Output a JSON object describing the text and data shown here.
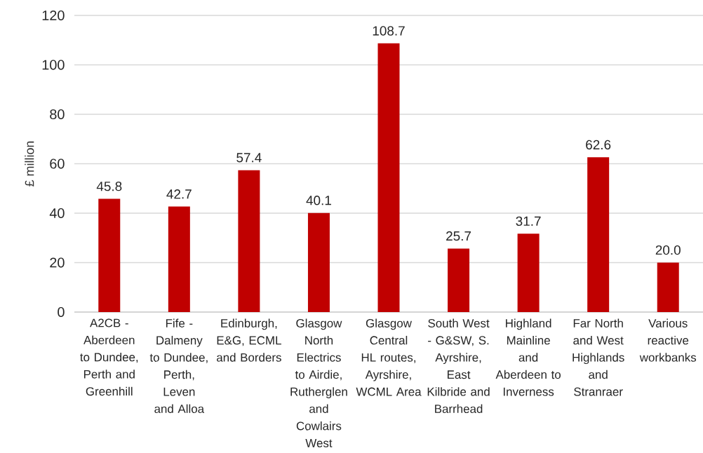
{
  "chart_data": {
    "type": "bar",
    "ylabel": "£ million",
    "categories": [
      "A2CB - Aberdeen to Dundee, Perth and Greenhill",
      "Fife - Dalmeny to Dundee, Perth, Leven and Alloa",
      "Edinburgh, E&G, ECML and Borders",
      "Glasgow North Electrics to Airdie, Rutherglen and Cowlairs West",
      "Glasgow Central HL routes, Ayrshire, WCML Area",
      "South West - G&SW, S. Ayrshire, East Kilbride and Barrhead",
      "Highland Mainline and Aberdeen to Inverness",
      "Far North and West Highlands and Stranraer",
      "Various reactive workbanks"
    ],
    "values": [
      45.8,
      42.7,
      57.4,
      40.1,
      108.7,
      25.7,
      31.7,
      62.6,
      20.0
    ],
    "value_labels": [
      "45.8",
      "42.7",
      "57.4",
      "40.1",
      "108.7",
      "25.7",
      "31.7",
      "62.6",
      "20.0"
    ],
    "color": "#c00000",
    "ylim": [
      0,
      120
    ],
    "yticks": [
      0,
      20,
      40,
      60,
      80,
      100,
      120
    ],
    "grid": "y"
  }
}
